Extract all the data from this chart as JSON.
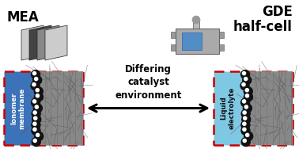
{
  "mea_label": "MEA",
  "gde_label": "GDE\nhalf-cell",
  "center_text": "Differing\ncatalyst\nenvironment",
  "left_box_label": "Ionomer\nmembrane",
  "right_box_label": "Liquid\nelectrolyte",
  "left_box_color": "#3B72B8",
  "right_box_color": "#7EC8E3",
  "box_border_color": "#CC0000",
  "background_color": "#ffffff",
  "figsize": [
    3.78,
    1.88
  ],
  "dpi": 100
}
